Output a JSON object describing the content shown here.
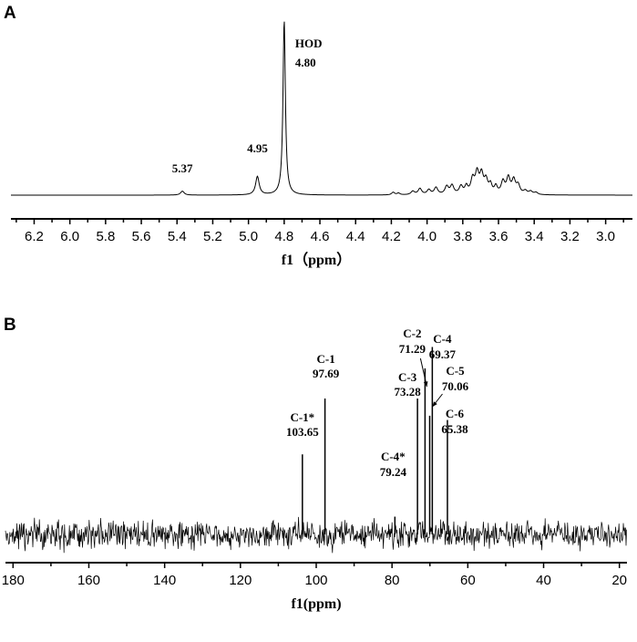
{
  "chart_data": [
    {
      "panel": "A",
      "type": "line",
      "xlabel": "f1（ppm）",
      "xlim": [
        6.33,
        2.85
      ],
      "x_ticks": [
        "6.2",
        "6.0",
        "5.8",
        "5.6",
        "5.4",
        "5.2",
        "5.0",
        "4.8",
        "4.6",
        "4.4",
        "4.2",
        "4.0",
        "3.8",
        "3.6",
        "3.4",
        "3.2",
        "3.0"
      ],
      "x_tick_values": [
        6.2,
        6.0,
        5.8,
        5.6,
        5.4,
        5.2,
        5.0,
        4.8,
        4.6,
        4.4,
        4.2,
        4.0,
        3.8,
        3.6,
        3.4,
        3.2,
        3.0
      ],
      "annotations": [
        {
          "label": "5.37",
          "x": 5.37
        },
        {
          "label": "4.95",
          "x": 4.95
        },
        {
          "label": "HOD",
          "x": 4.8
        },
        {
          "label": "4.80",
          "x": 4.8
        }
      ],
      "peaks": [
        {
          "x": 5.37,
          "h": 0.09,
          "w": 0.012
        },
        {
          "x": 4.95,
          "h": 0.42,
          "w": 0.012
        },
        {
          "x": 4.8,
          "h": 4.0,
          "w": 0.008
        },
        {
          "x": 4.19,
          "h": 0.06,
          "w": 0.01
        },
        {
          "x": 4.16,
          "h": 0.04,
          "w": 0.01
        },
        {
          "x": 4.08,
          "h": 0.08,
          "w": 0.012
        },
        {
          "x": 4.04,
          "h": 0.14,
          "w": 0.012
        },
        {
          "x": 3.99,
          "h": 0.11,
          "w": 0.012
        },
        {
          "x": 3.95,
          "h": 0.16,
          "w": 0.012
        },
        {
          "x": 3.89,
          "h": 0.18,
          "w": 0.012
        },
        {
          "x": 3.86,
          "h": 0.2,
          "w": 0.012
        },
        {
          "x": 3.81,
          "h": 0.18,
          "w": 0.012
        },
        {
          "x": 3.78,
          "h": 0.17,
          "w": 0.01
        },
        {
          "x": 3.745,
          "h": 0.33,
          "w": 0.012
        },
        {
          "x": 3.72,
          "h": 0.45,
          "w": 0.012
        },
        {
          "x": 3.695,
          "h": 0.42,
          "w": 0.012
        },
        {
          "x": 3.67,
          "h": 0.3,
          "w": 0.012
        },
        {
          "x": 3.645,
          "h": 0.2,
          "w": 0.01
        },
        {
          "x": 3.615,
          "h": 0.17,
          "w": 0.01
        },
        {
          "x": 3.575,
          "h": 0.28,
          "w": 0.012
        },
        {
          "x": 3.545,
          "h": 0.36,
          "w": 0.012
        },
        {
          "x": 3.515,
          "h": 0.31,
          "w": 0.012
        },
        {
          "x": 3.49,
          "h": 0.2,
          "w": 0.012
        },
        {
          "x": 3.45,
          "h": 0.08,
          "w": 0.012
        },
        {
          "x": 3.42,
          "h": 0.07,
          "w": 0.012
        },
        {
          "x": 3.39,
          "h": 0.05,
          "w": 0.012
        }
      ]
    },
    {
      "panel": "B",
      "type": "line",
      "xlabel": "f1(ppm)",
      "xlim": [
        182,
        18
      ],
      "x_ticks": [
        "180",
        "160",
        "140",
        "120",
        "100",
        "80",
        "60",
        "40",
        "20"
      ],
      "x_tick_values": [
        180,
        160,
        140,
        120,
        100,
        80,
        60,
        40,
        20
      ],
      "peaks": [
        {
          "name": "C-1*",
          "ppm": "103.65",
          "x": 103.65,
          "height": 0.5
        },
        {
          "name": "C-1",
          "ppm": "97.69",
          "x": 97.69,
          "height": 0.76
        },
        {
          "name": "C-4*",
          "ppm": "79.24",
          "x": 79.24,
          "height": 0.21
        },
        {
          "name": "C-3",
          "ppm": "73.28",
          "x": 73.28,
          "height": 0.76
        },
        {
          "name": "C-2",
          "ppm": "71.29",
          "x": 71.29,
          "height": 0.9
        },
        {
          "name": "C-5",
          "ppm": "70.06",
          "x": 70.06,
          "height": 0.68
        },
        {
          "name": "C-4",
          "ppm": "69.37",
          "x": 69.37,
          "height": 1.0
        },
        {
          "name": "C-6",
          "ppm": "65.38",
          "x": 65.38,
          "height": 0.66
        }
      ],
      "noise_level": 0.1
    }
  ],
  "panels": {
    "a_letter": "A",
    "b_letter": "B"
  }
}
